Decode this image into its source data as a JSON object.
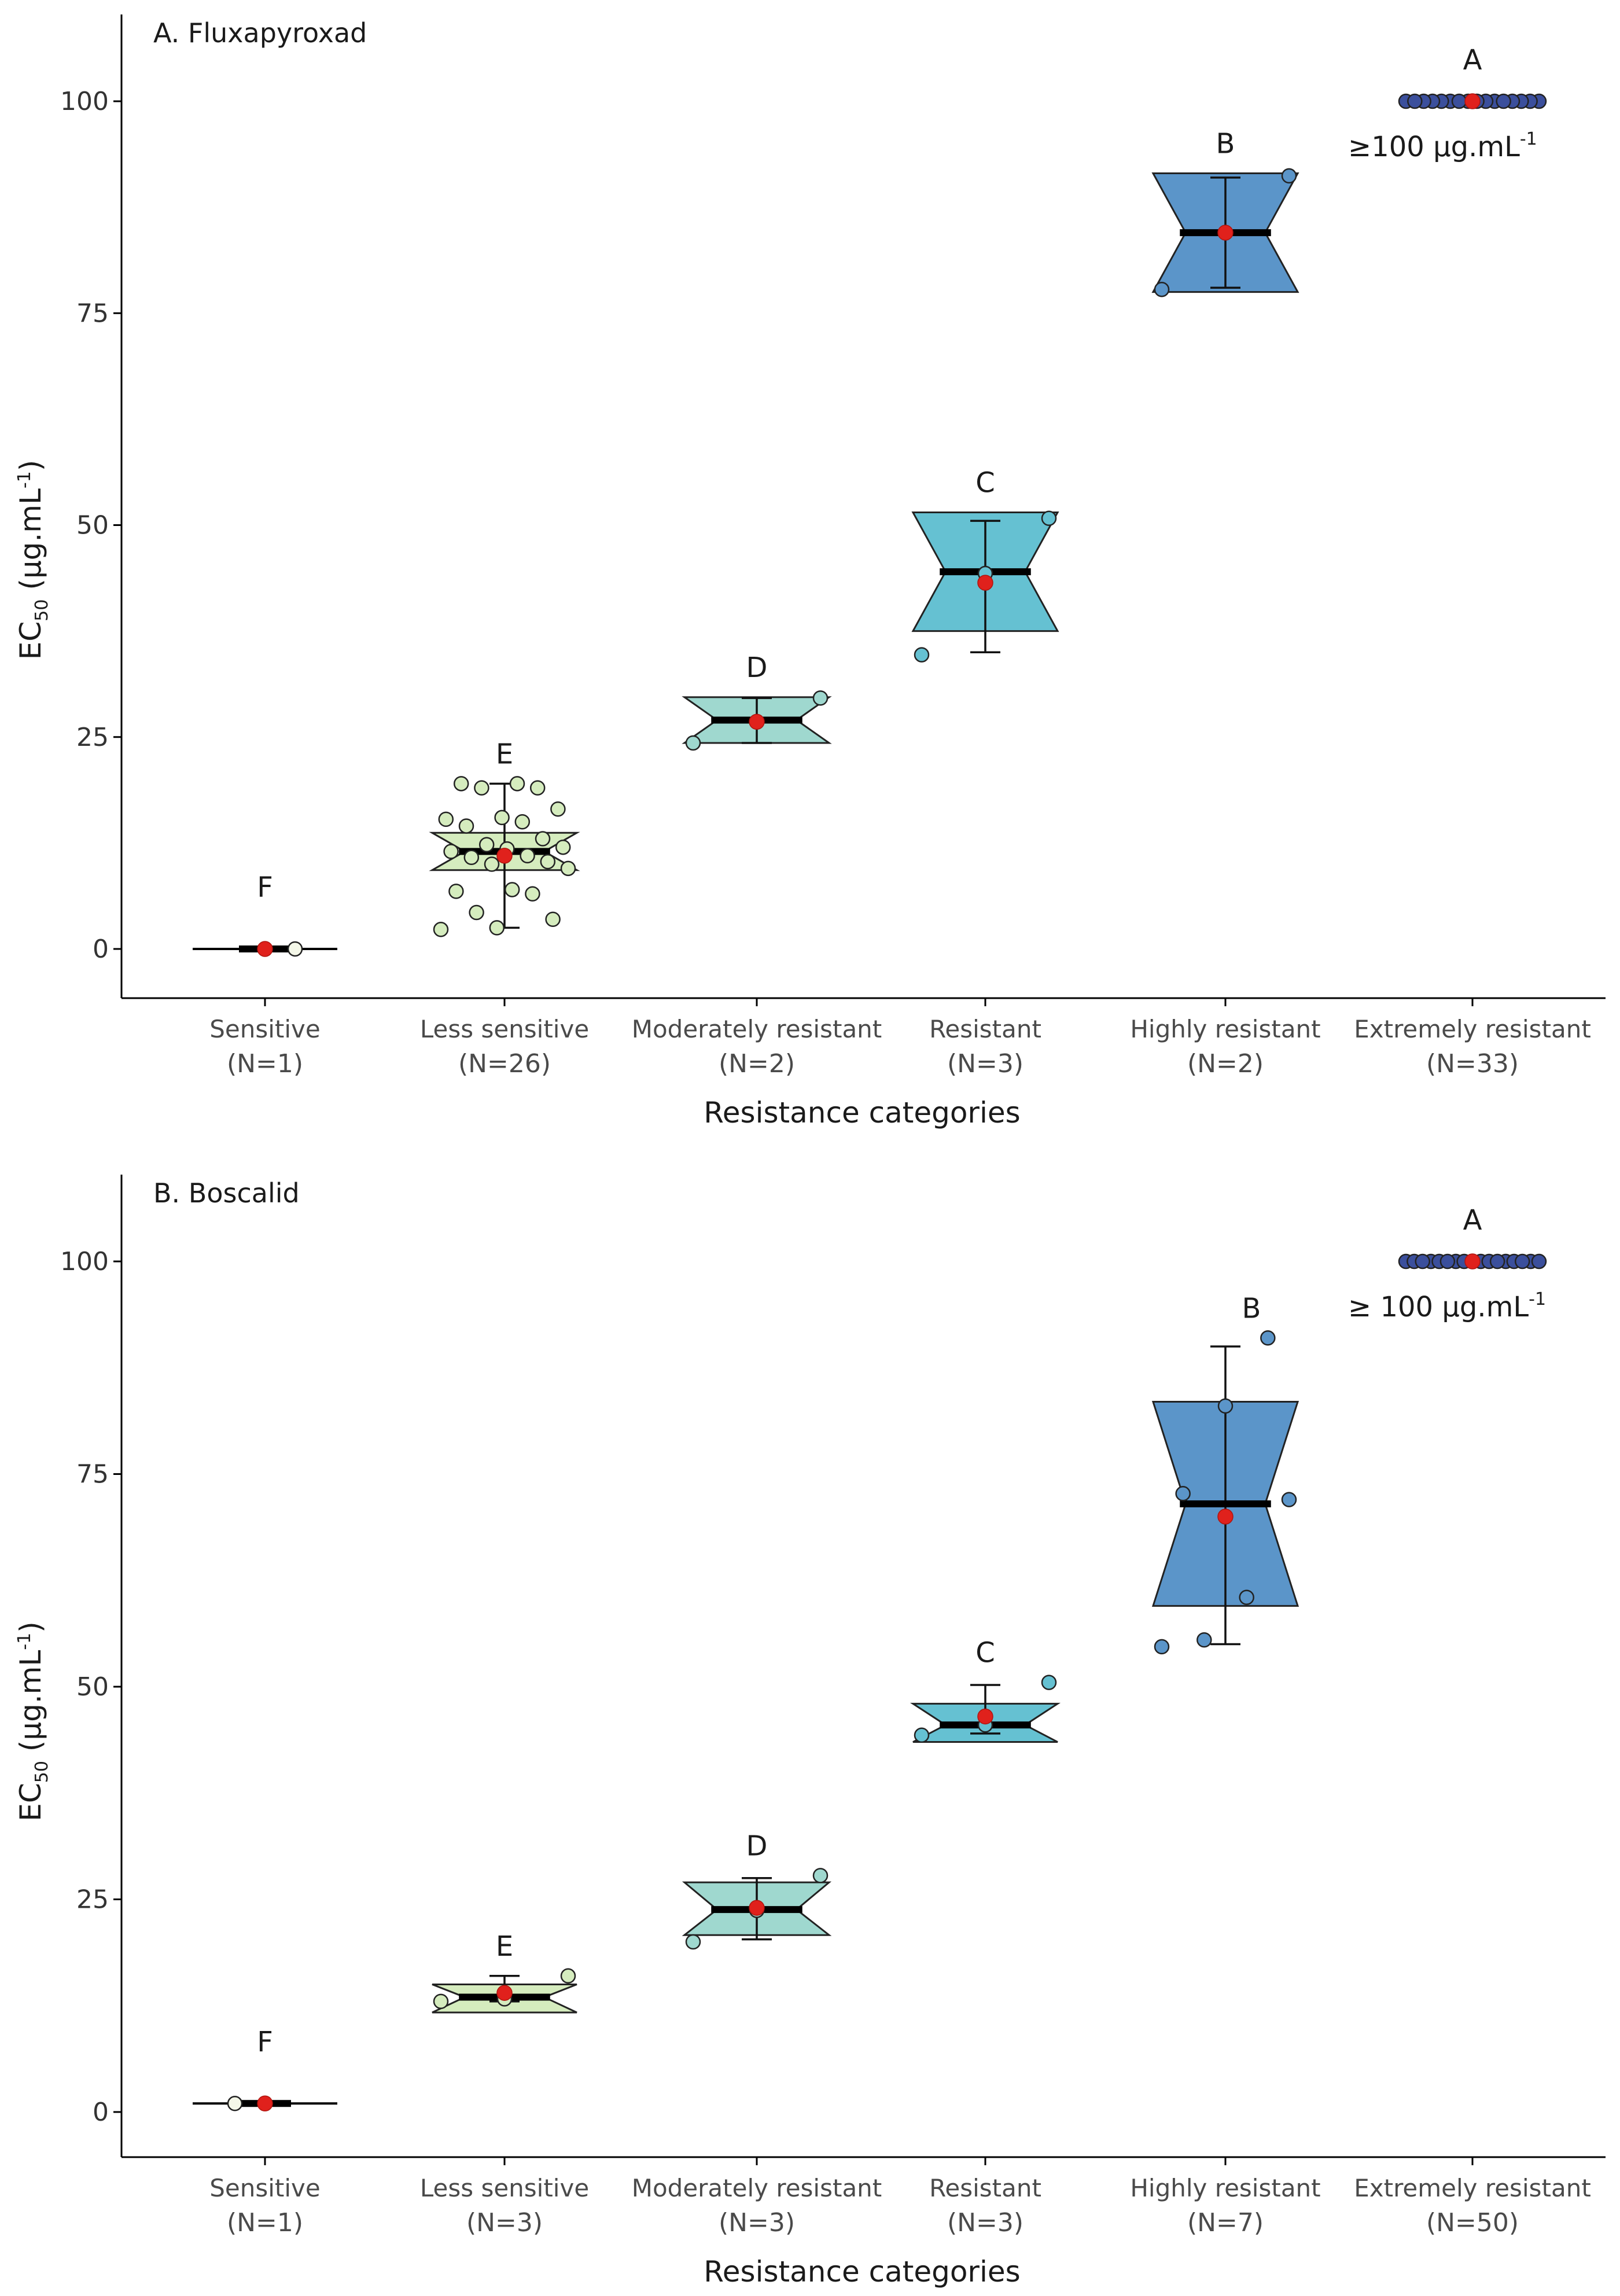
{
  "chart_data": [
    {
      "type": "box",
      "title": "A. Fluxapyroxad",
      "xlabel": "Resistance categories",
      "ylabel": {
        "main": "EC",
        "sub": "50",
        "unit": " (µg.mL",
        "sup": "-1",
        "close": ")"
      },
      "ylim": [
        -5,
        110
      ],
      "yticks": [
        0,
        25,
        50,
        75,
        100
      ],
      "annotation": {
        "text": "≥100 µg.mL",
        "sup": "-1"
      },
      "categories": [
        {
          "name": "Sensitive",
          "n": "(N=1)",
          "letter": "F",
          "color": "#ffffff",
          "q1": 0,
          "median": 0,
          "q3": 0,
          "notch_lo": 0,
          "notch_hi": 0,
          "wlo": 0,
          "whi": 0,
          "mean": 0,
          "points": [
            0
          ]
        },
        {
          "name": "Less sensitive",
          "n": "(N=26)",
          "letter": "E",
          "color": "#d5ecbe",
          "q1": 7,
          "median": 11.5,
          "q3": 15,
          "notch_lo": 9.3,
          "notch_hi": 13.7,
          "wlo": 2.5,
          "whi": 19.5,
          "mean": 11,
          "points": [
            2.3,
            2.5,
            3.5,
            4.3,
            6.5,
            6.8,
            7.0,
            9.5,
            10.0,
            10.3,
            10.8,
            11.0,
            11.5,
            11.8,
            12.0,
            12.3,
            13.0,
            14.5,
            15.0,
            15.3,
            15.5,
            16.5,
            19.0,
            19.0,
            19.5,
            19.5
          ]
        },
        {
          "name": "Moderately resistant",
          "n": "(N=2)",
          "letter": "D",
          "color": "#9fd8cf",
          "q1": 25.6,
          "median": 27,
          "q3": 28.3,
          "notch_lo": 24.3,
          "notch_hi": 29.7,
          "wlo": 24.3,
          "whi": 29.6,
          "mean": 26.8,
          "points": [
            24.3,
            29.6
          ]
        },
        {
          "name": "Resistant",
          "n": "(N=3)",
          "letter": "C",
          "color": "#65c1d2",
          "q1": 39.5,
          "median": 44.5,
          "q3": 47.5,
          "notch_lo": 37.5,
          "notch_hi": 51.5,
          "wlo": 35,
          "whi": 50.5,
          "mean": 43.2,
          "points": [
            34.7,
            44.3,
            50.8
          ]
        },
        {
          "name": "Highly resistant",
          "n": "(N=2)",
          "letter": "B",
          "color": "#5b95c9",
          "q1": 81.2,
          "median": 84.5,
          "q3": 87.8,
          "notch_lo": 77.5,
          "notch_hi": 91.5,
          "wlo": 78,
          "whi": 91,
          "mean": 84.5,
          "points": [
            77.8,
            91.2
          ]
        },
        {
          "name": "Extremely resistant",
          "n": "(N=33)",
          "letter": "A",
          "color": "#3b4f9c",
          "q1": 100,
          "median": 100,
          "q3": 100,
          "notch_lo": 100,
          "notch_hi": 100,
          "wlo": 100,
          "whi": 100,
          "mean": 100,
          "points": [
            100,
            100,
            100,
            100,
            100,
            100,
            100,
            100,
            100,
            100,
            100,
            100,
            100,
            100,
            100,
            100
          ]
        }
      ]
    },
    {
      "type": "box",
      "title": "B. Boscalid",
      "xlabel": "Resistance categories",
      "ylabel": {
        "main": "EC",
        "sub": "50",
        "unit": " (µg.mL",
        "sup": "-1",
        "close": ")"
      },
      "ylim": [
        -5,
        110
      ],
      "yticks": [
        0,
        25,
        50,
        75,
        100
      ],
      "annotation": {
        "text": "≥ 100 µg.mL",
        "sup": "-1"
      },
      "categories": [
        {
          "name": "Sensitive",
          "n": "(N=1)",
          "letter": "F",
          "color": "#ffffff",
          "q1": 1,
          "median": 1,
          "q3": 1,
          "notch_lo": 1,
          "notch_hi": 1,
          "wlo": 1,
          "whi": 1,
          "mean": 1,
          "points": [
            1
          ]
        },
        {
          "name": "Less sensitive",
          "n": "(N=3)",
          "letter": "E",
          "color": "#d5ecbe",
          "q1": 13,
          "median": 13.5,
          "q3": 14.7,
          "notch_lo": 11.7,
          "notch_hi": 15,
          "wlo": 13,
          "whi": 16,
          "mean": 14,
          "points": [
            13.0,
            13.3,
            16.0
          ]
        },
        {
          "name": "Moderately resistant",
          "n": "(N=3)",
          "letter": "D",
          "color": "#9fd8cf",
          "q1": 22.3,
          "median": 23.8,
          "q3": 25.7,
          "notch_lo": 20.8,
          "notch_hi": 27,
          "wlo": 20.3,
          "whi": 27.5,
          "mean": 24,
          "points": [
            20.0,
            23.7,
            27.8
          ]
        },
        {
          "name": "Resistant",
          "n": "(N=3)",
          "letter": "C",
          "color": "#65c1d2",
          "q1": 45,
          "median": 45.5,
          "q3": 47.7,
          "notch_lo": 43.5,
          "notch_hi": 48,
          "wlo": 44.5,
          "whi": 50.2,
          "mean": 46.5,
          "points": [
            44.3,
            45.5,
            50.5
          ]
        },
        {
          "name": "Highly resistant",
          "n": "(N=7)",
          "letter": "B",
          "color": "#5b95c9",
          "q1": 58,
          "median": 71.5,
          "q3": 78,
          "notch_lo": 59.5,
          "notch_hi": 83.5,
          "wlo": 55,
          "whi": 90,
          "mean": 70,
          "points": [
            54.7,
            55.5,
            60.5,
            72.0,
            72.7,
            83.0,
            91.0
          ]
        },
        {
          "name": "Extremely resistant",
          "n": "(N=50)",
          "letter": "A",
          "color": "#3b4f9c",
          "q1": 100,
          "median": 100,
          "q3": 100,
          "notch_lo": 100,
          "notch_hi": 100,
          "wlo": 100,
          "whi": 100,
          "mean": 100,
          "points": [
            100,
            100,
            100,
            100,
            100,
            100,
            100,
            100,
            100,
            100,
            100,
            100,
            100,
            100,
            100,
            100,
            100
          ]
        }
      ]
    }
  ]
}
